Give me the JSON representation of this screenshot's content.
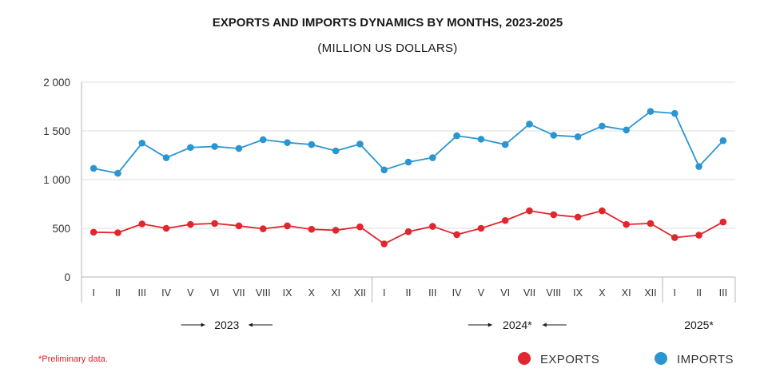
{
  "chart_data": {
    "type": "line",
    "title": "EXPORTS AND IMPORTS DYNAMICS BY MONTHS, 2023-2025",
    "subtitle": "(MILLION US DOLLARS)",
    "ylim": [
      0,
      2000
    ],
    "yticks": [
      0,
      500,
      1000,
      1500,
      2000
    ],
    "ytick_labels": [
      "0",
      "500",
      "1 000",
      "1 500",
      "2 000"
    ],
    "grid": true,
    "legend_position": "bottom-right",
    "categories": [
      "I",
      "II",
      "III",
      "IV",
      "V",
      "VI",
      "VII",
      "VIII",
      "IX",
      "X",
      "XI",
      "XII",
      "I",
      "II",
      "III",
      "IV",
      "V",
      "VI",
      "VII",
      "VIII",
      "IX",
      "X",
      "XI",
      "XII",
      "I",
      "II",
      "III"
    ],
    "year_groups": [
      {
        "label": "2023",
        "start": 0,
        "end": 11,
        "arrows": true
      },
      {
        "label": "2024*",
        "start": 12,
        "end": 23,
        "arrows": true
      },
      {
        "label": "2025*",
        "start": 24,
        "end": 26,
        "arrows": false
      }
    ],
    "series": [
      {
        "name": "EXPORTS",
        "color": "#e1262d",
        "values": [
          460,
          455,
          545,
          500,
          540,
          550,
          525,
          495,
          525,
          490,
          480,
          515,
          340,
          465,
          520,
          435,
          500,
          580,
          680,
          640,
          615,
          680,
          540,
          550,
          405,
          430,
          565
        ]
      },
      {
        "name": "IMPORTS",
        "color": "#2a96d1",
        "values": [
          1115,
          1065,
          1375,
          1225,
          1330,
          1340,
          1320,
          1410,
          1380,
          1360,
          1295,
          1365,
          1100,
          1180,
          1225,
          1450,
          1415,
          1360,
          1570,
          1455,
          1440,
          1550,
          1510,
          1700,
          1680,
          1135,
          1400
        ]
      }
    ],
    "footnote": "*Preliminary data."
  }
}
